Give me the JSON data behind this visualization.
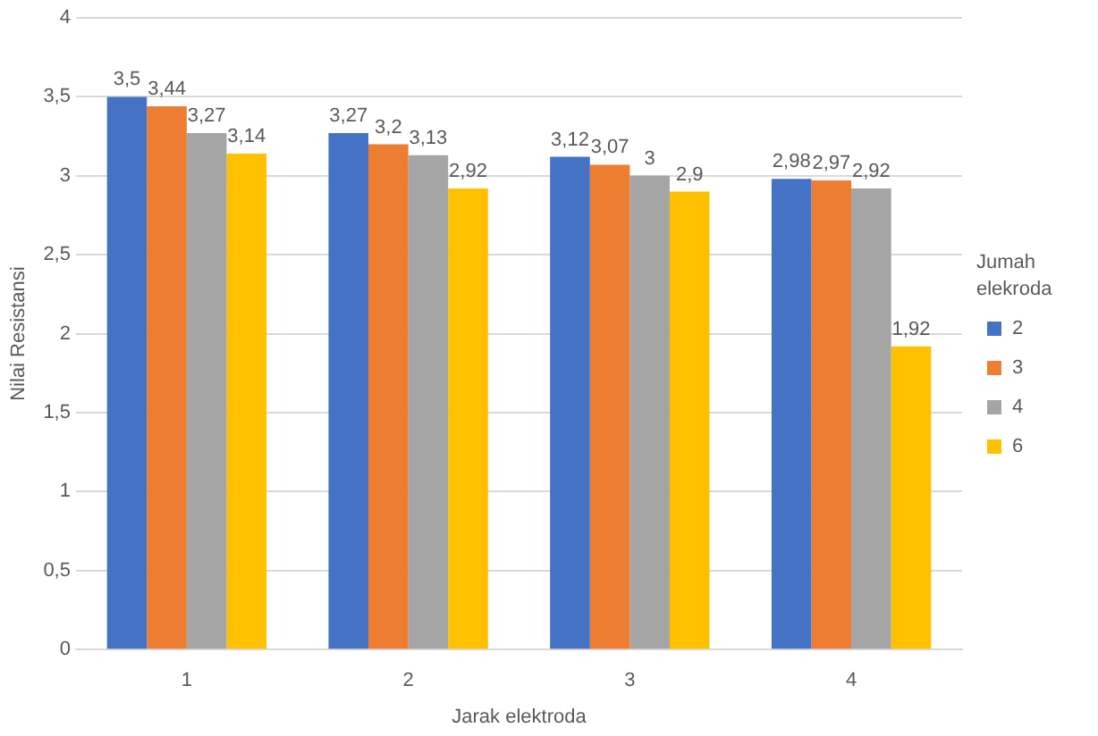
{
  "chart_data": {
    "type": "bar",
    "xlabel": "Jarak elektroda",
    "ylabel": "Nilai Resistansi",
    "legend_title": "Jumah elekroda",
    "categories": [
      "1",
      "2",
      "3",
      "4"
    ],
    "series": [
      {
        "name": "2",
        "color": "#4472c4",
        "values": [
          3.5,
          3.27,
          3.12,
          2.98
        ],
        "value_labels": [
          "3,5",
          "3,27",
          "3,12",
          "2,98"
        ]
      },
      {
        "name": "3",
        "color": "#ed7d31",
        "values": [
          3.44,
          3.2,
          3.07,
          2.97
        ],
        "value_labels": [
          "3,44",
          "3,2",
          "3,07",
          "2,97"
        ]
      },
      {
        "name": "4",
        "color": "#a5a5a5",
        "values": [
          3.27,
          3.13,
          3,
          2.92
        ],
        "value_labels": [
          "3,27",
          "3,13",
          "3",
          "2,92"
        ]
      },
      {
        "name": "6",
        "color": "#ffc000",
        "values": [
          3.14,
          2.92,
          2.9,
          1.92
        ],
        "value_labels": [
          "3,14",
          "2,92",
          "2,9",
          "1,92"
        ]
      }
    ],
    "ylim": [
      0,
      4
    ],
    "yticks": [
      0,
      {
        "value": 0.5,
        "label": "0,5"
      },
      1,
      {
        "value": 1.5,
        "label": "1,5"
      },
      2,
      {
        "value": 2.5,
        "label": "2,5"
      },
      3,
      {
        "value": 3.5,
        "label": "3,5"
      },
      4
    ],
    "grid": "y",
    "legend": "right"
  }
}
